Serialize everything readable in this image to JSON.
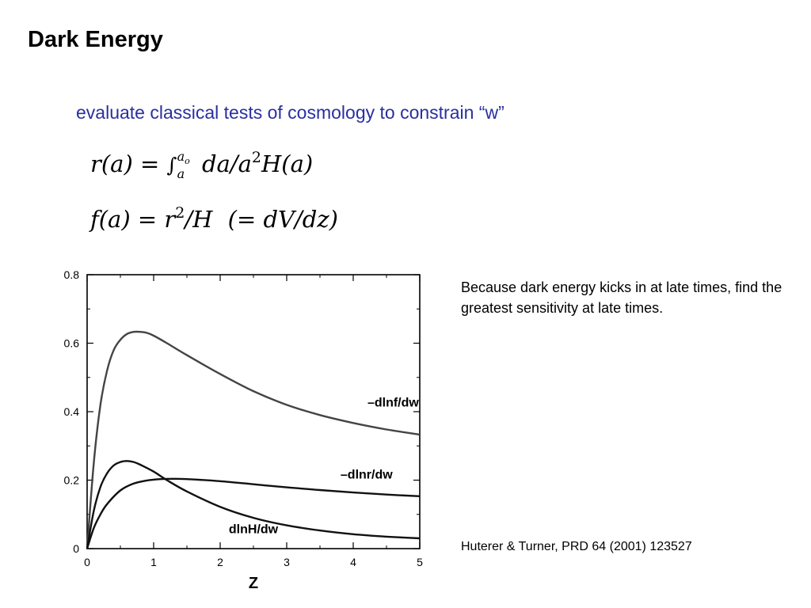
{
  "slide": {
    "title": "Dark Energy",
    "subtitle": "evaluate classical tests of cosmology to constrain “w”",
    "note": "Because dark energy kicks in at late times, find the greatest sensitivity at late times.",
    "citation": "Huterer & Turner, PRD 64 (2001) 123527"
  },
  "equations": {
    "eq1": {
      "lhs": "r(a)",
      "equals": "=",
      "integral": "∫",
      "lower": "a",
      "upper": "a",
      "upper_sub": "o",
      "body_a": "da/a",
      "power": "2",
      "body_b": "H(a)"
    },
    "eq2": {
      "lhs": "f(a)",
      "equals": "=",
      "body_a": "r",
      "power": "2",
      "body_b": "/H",
      "paren": "(= dV/dz)"
    }
  },
  "chart_data": {
    "type": "line",
    "xlabel": "Z",
    "ylabel": "",
    "xlim": [
      0,
      5
    ],
    "ylim": [
      0,
      0.8
    ],
    "xticks": [
      "0",
      "1",
      "2",
      "3",
      "4",
      "5"
    ],
    "yticks": [
      "0",
      "0.2",
      "0.4",
      "0.6",
      "0.8"
    ],
    "grid": false,
    "series": [
      {
        "name": "–dlnf/dw",
        "color": "#444444",
        "x": [
          0,
          0.1,
          0.2,
          0.3,
          0.4,
          0.5,
          0.6,
          0.7,
          0.8,
          0.9,
          1.0,
          1.2,
          1.5,
          2.0,
          2.5,
          3.0,
          3.5,
          4.0,
          4.5,
          5.0
        ],
        "y": [
          0,
          0.25,
          0.42,
          0.52,
          0.58,
          0.61,
          0.627,
          0.633,
          0.633,
          0.63,
          0.622,
          0.6,
          0.565,
          0.51,
          0.46,
          0.42,
          0.39,
          0.367,
          0.348,
          0.333
        ]
      },
      {
        "name": "–dlnr/dw",
        "color": "#111111",
        "x": [
          0,
          0.1,
          0.2,
          0.3,
          0.5,
          0.7,
          0.9,
          1.1,
          1.3,
          1.5,
          2.0,
          2.5,
          3.0,
          3.5,
          4.0,
          4.5,
          5.0
        ],
        "y": [
          0,
          0.06,
          0.1,
          0.13,
          0.17,
          0.19,
          0.199,
          0.203,
          0.204,
          0.203,
          0.197,
          0.188,
          0.179,
          0.171,
          0.164,
          0.158,
          0.153
        ]
      },
      {
        "name": "dlnH/dw",
        "color": "#111111",
        "x": [
          0,
          0.1,
          0.2,
          0.3,
          0.4,
          0.5,
          0.6,
          0.7,
          0.8,
          1.0,
          1.2,
          1.5,
          2.0,
          2.5,
          3.0,
          3.5,
          4.0,
          4.5,
          5.0
        ],
        "y": [
          0,
          0.11,
          0.18,
          0.22,
          0.243,
          0.253,
          0.256,
          0.253,
          0.245,
          0.225,
          0.2,
          0.167,
          0.122,
          0.09,
          0.068,
          0.053,
          0.042,
          0.035,
          0.03
        ]
      }
    ],
    "annotations": [
      {
        "text": "–dlnf/dw",
        "x": 4.6,
        "y": 0.415
      },
      {
        "text": "–dlnr/dw",
        "x": 4.2,
        "y": 0.205
      },
      {
        "text": "dlnH/dw",
        "x": 2.5,
        "y": 0.045
      }
    ]
  }
}
